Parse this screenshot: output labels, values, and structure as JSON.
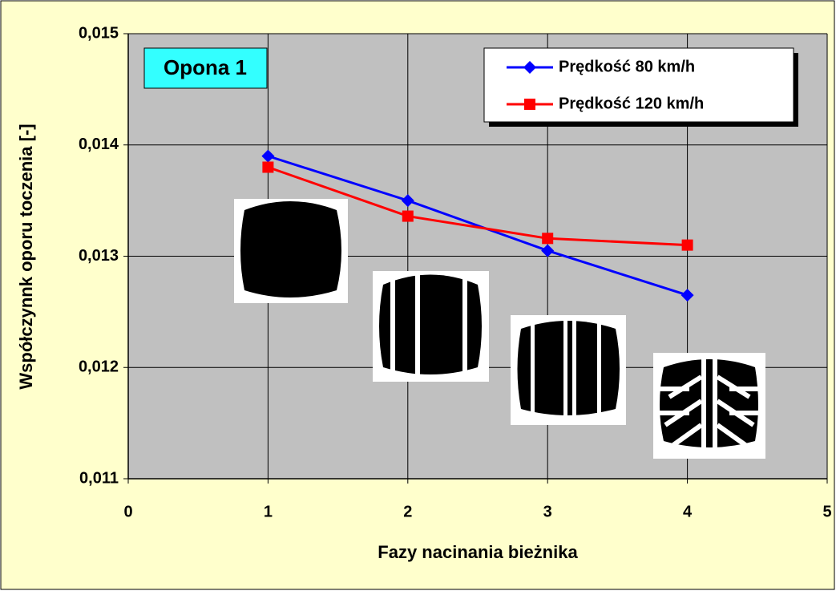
{
  "chart_data": {
    "type": "line",
    "x_label": "Fazy nacinania bieżnika",
    "y_label": "Współczynnk oporu toczenia [-]",
    "annotation": "Opona 1",
    "x": [
      1,
      2,
      3,
      4
    ],
    "series": [
      {
        "name": "Prędkość 80 km/h",
        "color": "#0000ff",
        "marker": "diamond",
        "values": [
          0.0139,
          0.0135,
          0.01305,
          0.01265
        ]
      },
      {
        "name": "Prędkość 120 km/h",
        "color": "#ff0000",
        "marker": "square",
        "values": [
          0.0138,
          0.01336,
          0.01316,
          0.0131
        ]
      }
    ],
    "xlim": [
      0,
      5
    ],
    "xticks": [
      0,
      1,
      2,
      3,
      4,
      5
    ],
    "ylim": [
      0.011,
      0.015
    ],
    "yticks": [
      {
        "value": 0.011,
        "label": "0,011"
      },
      {
        "value": 0.012,
        "label": "0,012"
      },
      {
        "value": 0.013,
        "label": "0,013"
      },
      {
        "value": 0.014,
        "label": "0,014"
      },
      {
        "value": 0.015,
        "label": "0,015"
      }
    ],
    "grid": true,
    "legend": "upper right"
  }
}
